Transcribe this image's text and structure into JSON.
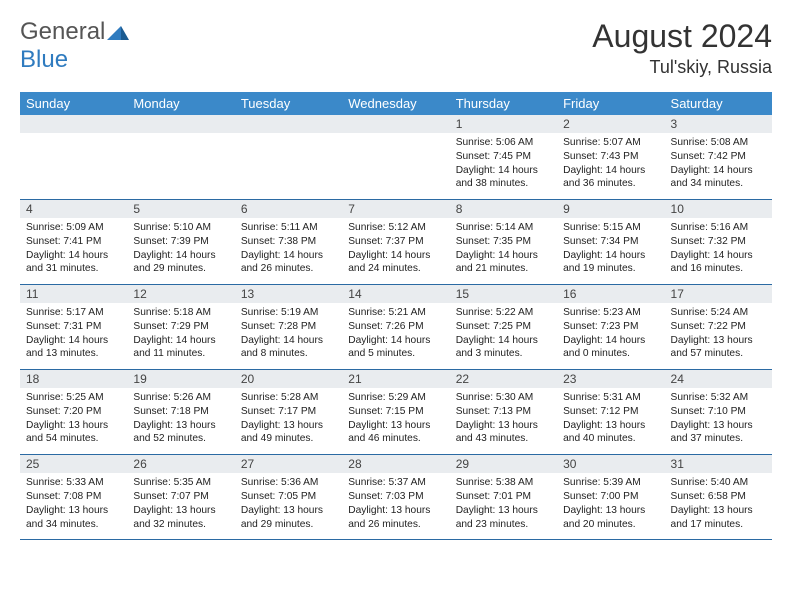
{
  "brand": {
    "name1": "General",
    "name2": "Blue"
  },
  "title": "August 2024",
  "location": "Tul'skiy, Russia",
  "colors": {
    "header_bg": "#3b89c9",
    "daynum_bg": "#e9ecef",
    "rule": "#2b6aa3"
  },
  "day_labels": [
    "Sunday",
    "Monday",
    "Tuesday",
    "Wednesday",
    "Thursday",
    "Friday",
    "Saturday"
  ],
  "weeks": [
    [
      null,
      null,
      null,
      null,
      {
        "n": "1",
        "sr": "5:06 AM",
        "ss": "7:45 PM",
        "dl": "14 hours and 38 minutes."
      },
      {
        "n": "2",
        "sr": "5:07 AM",
        "ss": "7:43 PM",
        "dl": "14 hours and 36 minutes."
      },
      {
        "n": "3",
        "sr": "5:08 AM",
        "ss": "7:42 PM",
        "dl": "14 hours and 34 minutes."
      }
    ],
    [
      {
        "n": "4",
        "sr": "5:09 AM",
        "ss": "7:41 PM",
        "dl": "14 hours and 31 minutes."
      },
      {
        "n": "5",
        "sr": "5:10 AM",
        "ss": "7:39 PM",
        "dl": "14 hours and 29 minutes."
      },
      {
        "n": "6",
        "sr": "5:11 AM",
        "ss": "7:38 PM",
        "dl": "14 hours and 26 minutes."
      },
      {
        "n": "7",
        "sr": "5:12 AM",
        "ss": "7:37 PM",
        "dl": "14 hours and 24 minutes."
      },
      {
        "n": "8",
        "sr": "5:14 AM",
        "ss": "7:35 PM",
        "dl": "14 hours and 21 minutes."
      },
      {
        "n": "9",
        "sr": "5:15 AM",
        "ss": "7:34 PM",
        "dl": "14 hours and 19 minutes."
      },
      {
        "n": "10",
        "sr": "5:16 AM",
        "ss": "7:32 PM",
        "dl": "14 hours and 16 minutes."
      }
    ],
    [
      {
        "n": "11",
        "sr": "5:17 AM",
        "ss": "7:31 PM",
        "dl": "14 hours and 13 minutes."
      },
      {
        "n": "12",
        "sr": "5:18 AM",
        "ss": "7:29 PM",
        "dl": "14 hours and 11 minutes."
      },
      {
        "n": "13",
        "sr": "5:19 AM",
        "ss": "7:28 PM",
        "dl": "14 hours and 8 minutes."
      },
      {
        "n": "14",
        "sr": "5:21 AM",
        "ss": "7:26 PM",
        "dl": "14 hours and 5 minutes."
      },
      {
        "n": "15",
        "sr": "5:22 AM",
        "ss": "7:25 PM",
        "dl": "14 hours and 3 minutes."
      },
      {
        "n": "16",
        "sr": "5:23 AM",
        "ss": "7:23 PM",
        "dl": "14 hours and 0 minutes."
      },
      {
        "n": "17",
        "sr": "5:24 AM",
        "ss": "7:22 PM",
        "dl": "13 hours and 57 minutes."
      }
    ],
    [
      {
        "n": "18",
        "sr": "5:25 AM",
        "ss": "7:20 PM",
        "dl": "13 hours and 54 minutes."
      },
      {
        "n": "19",
        "sr": "5:26 AM",
        "ss": "7:18 PM",
        "dl": "13 hours and 52 minutes."
      },
      {
        "n": "20",
        "sr": "5:28 AM",
        "ss": "7:17 PM",
        "dl": "13 hours and 49 minutes."
      },
      {
        "n": "21",
        "sr": "5:29 AM",
        "ss": "7:15 PM",
        "dl": "13 hours and 46 minutes."
      },
      {
        "n": "22",
        "sr": "5:30 AM",
        "ss": "7:13 PM",
        "dl": "13 hours and 43 minutes."
      },
      {
        "n": "23",
        "sr": "5:31 AM",
        "ss": "7:12 PM",
        "dl": "13 hours and 40 minutes."
      },
      {
        "n": "24",
        "sr": "5:32 AM",
        "ss": "7:10 PM",
        "dl": "13 hours and 37 minutes."
      }
    ],
    [
      {
        "n": "25",
        "sr": "5:33 AM",
        "ss": "7:08 PM",
        "dl": "13 hours and 34 minutes."
      },
      {
        "n": "26",
        "sr": "5:35 AM",
        "ss": "7:07 PM",
        "dl": "13 hours and 32 minutes."
      },
      {
        "n": "27",
        "sr": "5:36 AM",
        "ss": "7:05 PM",
        "dl": "13 hours and 29 minutes."
      },
      {
        "n": "28",
        "sr": "5:37 AM",
        "ss": "7:03 PM",
        "dl": "13 hours and 26 minutes."
      },
      {
        "n": "29",
        "sr": "5:38 AM",
        "ss": "7:01 PM",
        "dl": "13 hours and 23 minutes."
      },
      {
        "n": "30",
        "sr": "5:39 AM",
        "ss": "7:00 PM",
        "dl": "13 hours and 20 minutes."
      },
      {
        "n": "31",
        "sr": "5:40 AM",
        "ss": "6:58 PM",
        "dl": "13 hours and 17 minutes."
      }
    ]
  ],
  "labels": {
    "sunrise": "Sunrise: ",
    "sunset": "Sunset: ",
    "daylight": "Daylight: "
  }
}
